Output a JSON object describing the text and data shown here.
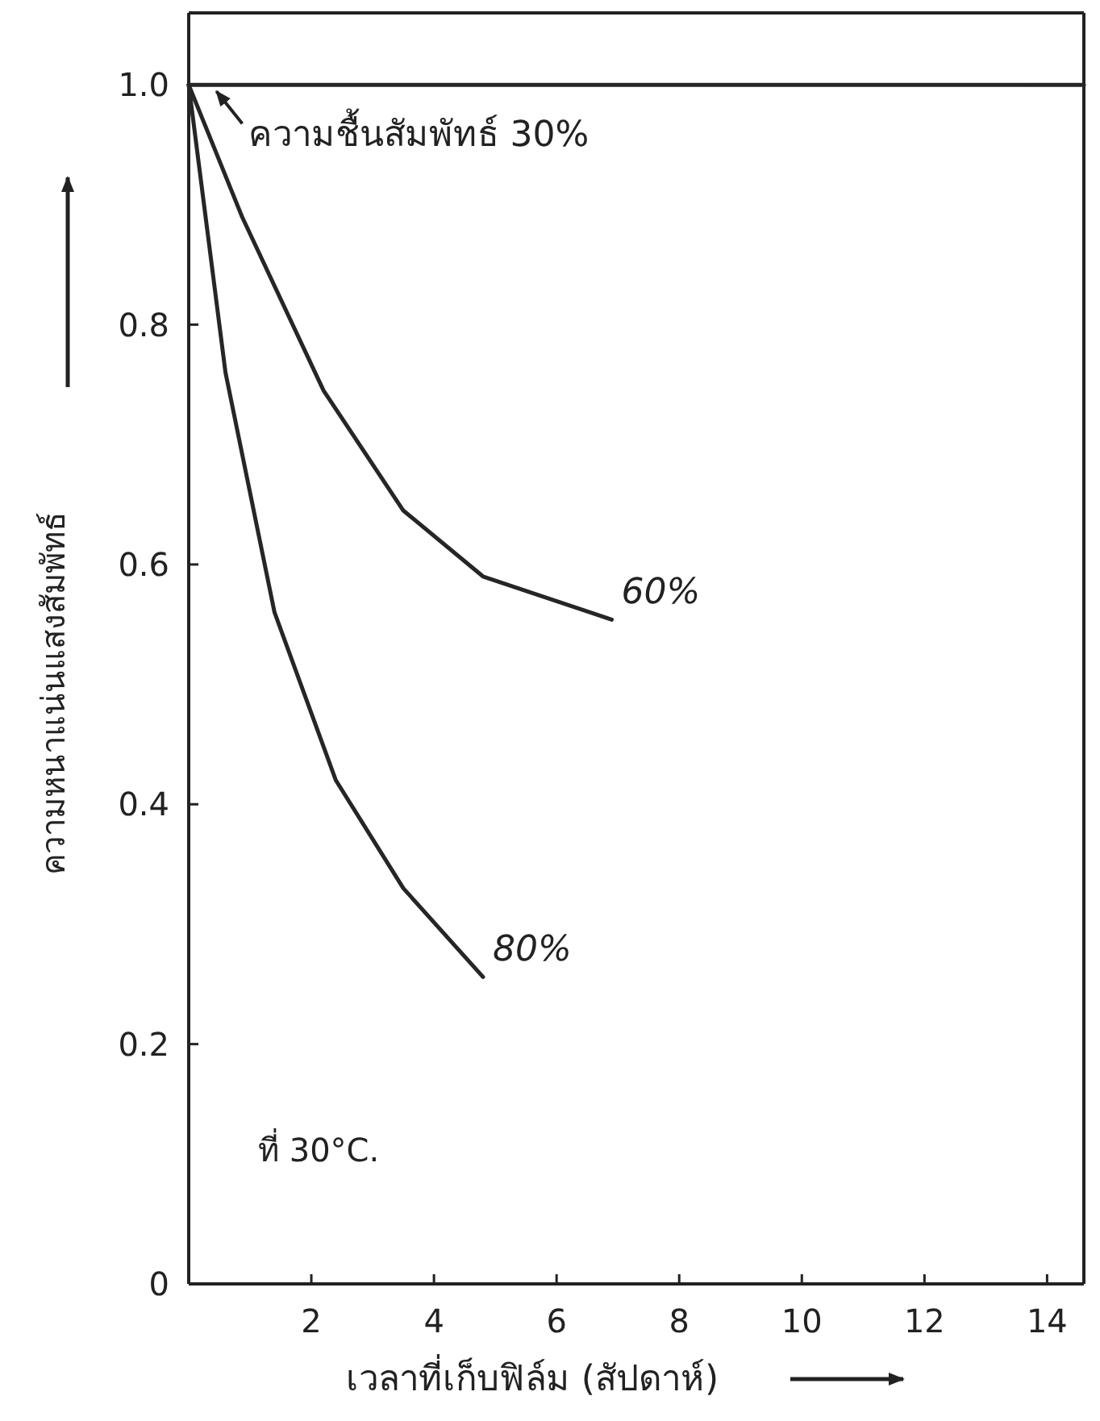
{
  "chart_data": {
    "type": "line",
    "xlabel": "เวลาที่เก็บฟิล์ม (สัปดาห์)",
    "ylabel": "ความหนาแน่นแสงสัมพัทธ์",
    "xlim": [
      0,
      14.6
    ],
    "ylim": [
      0,
      1.06
    ],
    "xticks": [
      {
        "value": 0,
        "label": null
      },
      2,
      4,
      6,
      8,
      10,
      12,
      14
    ],
    "yticks": [
      0,
      0.2,
      0.4,
      0.6,
      0.8,
      {
        "value": 1.0,
        "label": "1.0"
      }
    ],
    "grid": false,
    "line_style": "solid",
    "series": [
      {
        "color": "#262626",
        "x": [
          0,
          14.6
        ],
        "values": [
          1.0,
          1.0
        ]
      },
      {
        "name": "60%",
        "color": "#262626",
        "x": [
          0,
          0.87,
          2.2,
          3.5,
          4.8,
          6.9
        ],
        "values": [
          1.0,
          0.89,
          0.745,
          0.645,
          0.59,
          0.554
        ]
      },
      {
        "name": "80%",
        "color": "#262626",
        "x": [
          0,
          0.6,
          1.4,
          2.4,
          3.5,
          4.8
        ],
        "values": [
          1.0,
          0.76,
          0.56,
          0.42,
          0.33,
          0.256
        ]
      }
    ],
    "annotations": [
      {
        "text": "ความชื้นสัมพัทธ์ 30%",
        "x": 0.4,
        "y": 1.0
      },
      "ที่ 30°C."
    ]
  }
}
